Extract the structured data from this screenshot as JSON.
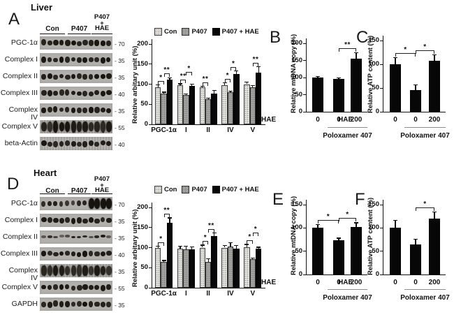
{
  "sections": {
    "liver": {
      "panel": "A",
      "title": "Liver",
      "blot": {
        "lane_groups": [
          "Con",
          "P407",
          "P407 + HAE"
        ],
        "stacked_group": [
          "P407",
          "+",
          "HAE"
        ],
        "rows": [
          {
            "label": "PGC-1α",
            "mw": "70"
          },
          {
            "label": "Complex I",
            "mw": "35"
          },
          {
            "label": "Complex II",
            "mw": "35"
          },
          {
            "label": "Complex III",
            "mw": "40"
          },
          {
            "label": "Complex IV",
            "mw": "35"
          },
          {
            "label": "Complex V",
            "mw": "55"
          },
          {
            "label": "beta-Actin",
            "mw": "40"
          }
        ]
      }
    },
    "heart": {
      "panel": "D",
      "title": "Heart",
      "blot": {
        "lane_groups": [
          "Con",
          "P407",
          "P407 + HAE"
        ],
        "stacked_group": [
          "P407",
          "+",
          "HAE"
        ],
        "rows": [
          {
            "label": "PGC-1α",
            "mw": "70"
          },
          {
            "label": "Complex I",
            "mw": "35"
          },
          {
            "label": "Complex II",
            "mw": "35"
          },
          {
            "label": "Complex III",
            "mw": "40"
          },
          {
            "label": "Complex IV",
            "mw": "35"
          },
          {
            "label": "Complex V",
            "mw": "55"
          },
          {
            "label": "GAPDH",
            "mw": "35"
          }
        ]
      }
    }
  },
  "chart_data": [
    {
      "panel": "A",
      "type": "bar",
      "ylabel": "Relative arbitary unit (%)",
      "ylim": [
        0,
        200
      ],
      "yticks": [
        0,
        50,
        100,
        150,
        200
      ],
      "categories": [
        "PGC-1α",
        "I",
        "II",
        "IV",
        "V"
      ],
      "series": [
        {
          "name": "Con",
          "values": [
            93,
            97,
            92,
            98,
            100
          ],
          "errors": [
            7,
            5,
            4,
            6,
            6
          ]
        },
        {
          "name": "P407",
          "values": [
            76,
            73,
            63,
            80,
            93
          ],
          "errors": [
            5,
            4,
            3,
            4,
            4
          ]
        },
        {
          "name": "P407 + HAE",
          "values": [
            111,
            95,
            77,
            126,
            128
          ],
          "errors": [
            6,
            6,
            8,
            8,
            16
          ]
        }
      ],
      "significance": [
        {
          "category": 0,
          "bars": [
            0,
            1
          ],
          "label": "*"
        },
        {
          "category": 0,
          "bars": [
            1,
            2
          ],
          "label": "**"
        },
        {
          "category": 1,
          "bars": [
            0,
            1
          ],
          "label": "**"
        },
        {
          "category": 1,
          "bars": [
            1,
            2
          ],
          "label": "*"
        },
        {
          "category": 2,
          "bars": [
            0,
            1
          ],
          "label": "**"
        },
        {
          "category": 3,
          "bars": [
            0,
            1
          ],
          "label": "*"
        },
        {
          "category": 3,
          "bars": [
            1,
            2
          ],
          "label": "*"
        },
        {
          "category": 4,
          "bars": [
            1,
            2
          ],
          "label": "**"
        }
      ]
    },
    {
      "panel": "B",
      "type": "bar",
      "ylabel": "Relative mtDNA copy (%)",
      "ylim": [
        0,
        200
      ],
      "yticks": [
        0,
        50,
        100,
        150,
        200
      ],
      "x_prefix": "HAE",
      "categories": [
        "0",
        "0",
        "200"
      ],
      "values": [
        100,
        96,
        155
      ],
      "errors": [
        5,
        4,
        18
      ],
      "group_label": {
        "text": "Poloxamer 407",
        "bars": [
          1,
          2
        ]
      },
      "significance": [
        {
          "bars": [
            1,
            2
          ],
          "label": "**"
        }
      ]
    },
    {
      "panel": "C",
      "type": "bar",
      "ylabel": "Relative ATP content (%)",
      "ylim": [
        0,
        150
      ],
      "yticks": [
        0,
        50,
        100,
        150
      ],
      "x_prefix": "HAE",
      "categories": [
        "0",
        "0",
        "200"
      ],
      "values": [
        100,
        45,
        108
      ],
      "errors": [
        15,
        13,
        13
      ],
      "group_label": {
        "text": "Poloxamer 407",
        "bars": [
          1,
          2
        ]
      },
      "significance": [
        {
          "bars": [
            0,
            1
          ],
          "label": "*"
        },
        {
          "bars": [
            1,
            2
          ],
          "label": "*"
        }
      ]
    },
    {
      "panel": "D",
      "type": "bar",
      "ylabel": "Relative arbitary unit (%)",
      "ylim": [
        0,
        200
      ],
      "yticks": [
        0,
        50,
        100,
        150,
        200
      ],
      "categories": [
        "PGC-1α",
        "I",
        "II",
        "IV",
        "V"
      ],
      "series": [
        {
          "name": "Con",
          "values": [
            100,
            97,
            100,
            100,
            101
          ],
          "errors": [
            5,
            8,
            7,
            6,
            8
          ]
        },
        {
          "name": "P407",
          "values": [
            65,
            96,
            65,
            103,
            72
          ],
          "errors": [
            4,
            9,
            8,
            10,
            3
          ]
        },
        {
          "name": "P407 + HAE",
          "values": [
            162,
            95,
            128,
            97,
            98
          ],
          "errors": [
            13,
            8,
            10,
            9,
            4
          ]
        }
      ],
      "significance": [
        {
          "category": 0,
          "bars": [
            0,
            1
          ],
          "label": "*"
        },
        {
          "category": 0,
          "bars": [
            1,
            2
          ],
          "label": "**"
        },
        {
          "category": 2,
          "bars": [
            0,
            1
          ],
          "label": "*"
        },
        {
          "category": 2,
          "bars": [
            1,
            2
          ],
          "label": "**"
        },
        {
          "category": 4,
          "bars": [
            0,
            1
          ],
          "label": "*"
        },
        {
          "category": 4,
          "bars": [
            1,
            2
          ],
          "label": "*"
        }
      ]
    },
    {
      "panel": "E",
      "type": "bar",
      "ylabel": "Relative mtDNA copy (%)",
      "ylim": [
        0,
        150
      ],
      "yticks": [
        0,
        50,
        100,
        150
      ],
      "x_prefix": "HAE",
      "categories": [
        "0",
        "0",
        "200"
      ],
      "values": [
        100,
        73,
        102
      ],
      "errors": [
        8,
        6,
        10
      ],
      "group_label": {
        "text": "Poloxamer 407",
        "bars": [
          1,
          2
        ]
      },
      "significance": [
        {
          "bars": [
            0,
            1
          ],
          "label": "*"
        },
        {
          "bars": [
            1,
            2
          ],
          "label": "*"
        }
      ]
    },
    {
      "panel": "F",
      "type": "bar",
      "ylabel": "Relative ATP content (%)",
      "ylim": [
        0,
        150
      ],
      "yticks": [
        0,
        50,
        100,
        150
      ],
      "x_prefix": "HAE",
      "categories": [
        "0",
        "0",
        "200"
      ],
      "values": [
        100,
        65,
        120
      ],
      "errors": [
        17,
        12,
        15
      ],
      "group_label": {
        "text": "Poloxamer 407",
        "bars": [
          1,
          2
        ]
      },
      "significance": [
        {
          "bars": [
            1,
            2
          ],
          "label": "*"
        }
      ]
    }
  ]
}
